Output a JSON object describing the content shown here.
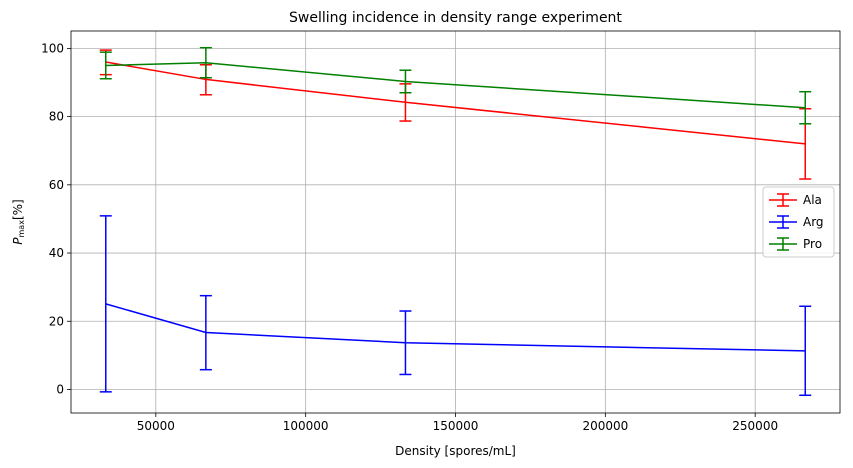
{
  "chart_data": {
    "type": "line",
    "title": "Swelling incidence in density range experiment",
    "xlabel": "Density [spores/mL]",
    "ylabel_main": "P",
    "ylabel_sub": "max",
    "ylabel_unit": "[%]",
    "xlim": [
      21700,
      278300
    ],
    "ylim": [
      -6.9,
      105.1
    ],
    "xticks": [
      50000,
      100000,
      150000,
      200000,
      250000
    ],
    "xtick_labels": [
      "50000",
      "100000",
      "150000",
      "200000",
      "250000"
    ],
    "yticks": [
      0,
      20,
      40,
      60,
      80,
      100
    ],
    "ytick_labels": [
      "0",
      "20",
      "40",
      "60",
      "80",
      "100"
    ],
    "grid": true,
    "legend_position": "center-right",
    "x": [
      33300,
      66700,
      133300,
      266700
    ],
    "series": [
      {
        "name": "Ala",
        "color": "#ff0000",
        "values": [
          96.0,
          90.9,
          84.2,
          72.0
        ],
        "err_low": [
          92.3,
          86.4,
          78.7,
          61.7
        ],
        "err_high": [
          99.5,
          95.2,
          89.6,
          82.3
        ]
      },
      {
        "name": "Arg",
        "color": "#0000ff",
        "values": [
          25.1,
          16.7,
          13.7,
          11.3
        ],
        "err_low": [
          -0.7,
          5.8,
          4.4,
          -1.7
        ],
        "err_high": [
          50.9,
          27.5,
          23.0,
          24.4
        ]
      },
      {
        "name": "Pro",
        "color": "#008000",
        "values": [
          95.0,
          95.8,
          90.3,
          82.6
        ],
        "err_low": [
          91.1,
          91.4,
          87.0,
          77.9
        ],
        "err_high": [
          98.9,
          100.2,
          93.6,
          87.3
        ]
      }
    ]
  }
}
